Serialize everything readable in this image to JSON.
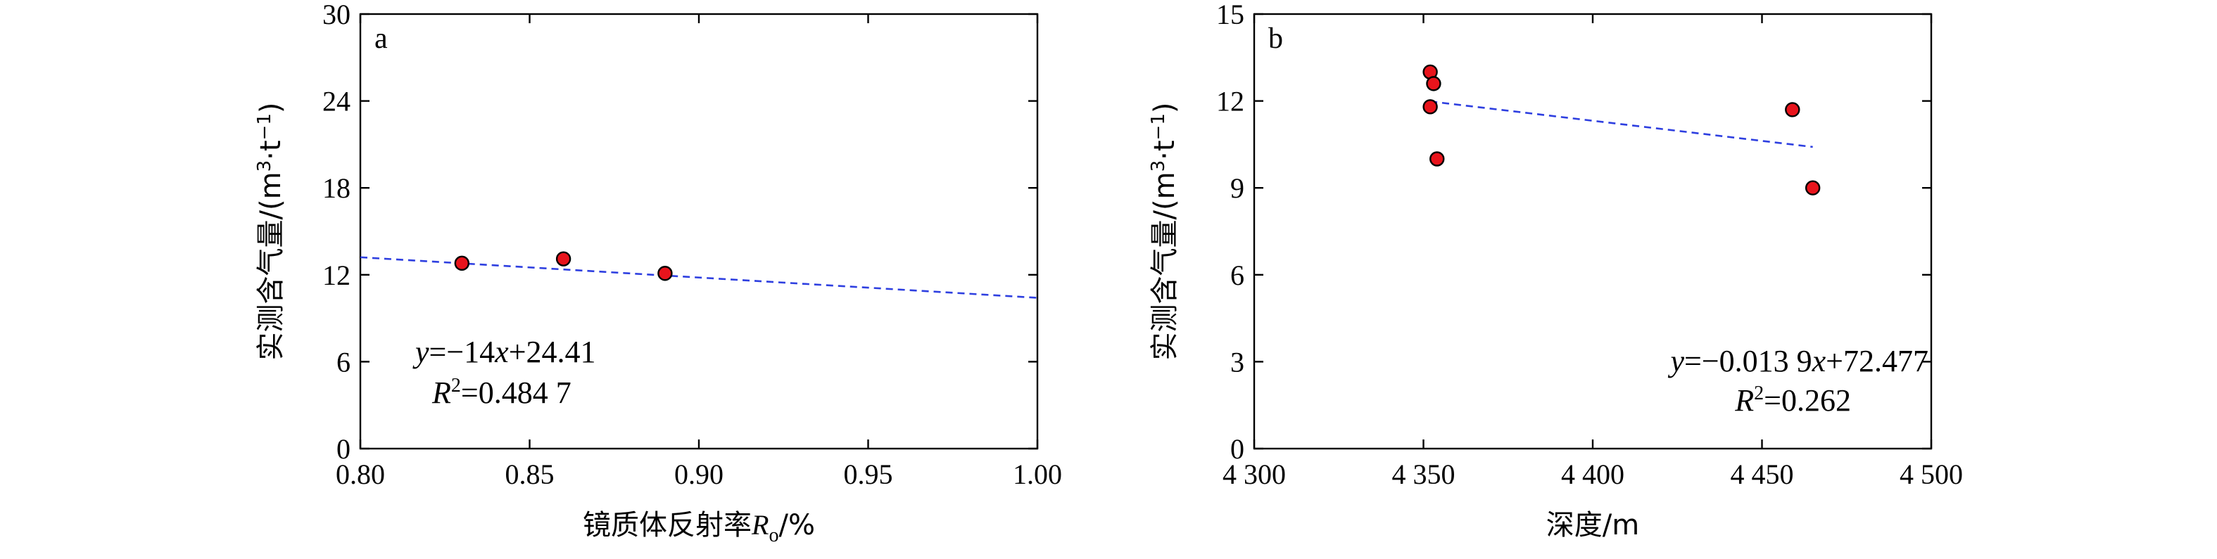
{
  "chart_data": [
    {
      "type": "scatter",
      "panel_label": "a",
      "xlabel_prefix": "镜质体反射率",
      "xlabel_var": "R",
      "xlabel_sub": "o",
      "xlabel_suffix": "/%",
      "ylabel_prefix": "实测含气量/(m",
      "ylabel_sup1": "3",
      "ylabel_mid": "·t",
      "ylabel_sup2": "−1",
      "ylabel_suffix": ")",
      "xlim": [
        0.8,
        1.0
      ],
      "ylim": [
        0,
        30
      ],
      "xticks": [
        0.8,
        0.85,
        0.9,
        0.95,
        1.0
      ],
      "xtick_labels": [
        "0.80",
        "0.85",
        "0.90",
        "0.95",
        "1.00"
      ],
      "yticks": [
        0,
        6,
        12,
        18,
        24,
        30
      ],
      "ytick_labels": [
        "0",
        "6",
        "12",
        "18",
        "24",
        "30"
      ],
      "points": [
        {
          "x": 0.83,
          "y": 12.8
        },
        {
          "x": 0.86,
          "y": 13.1
        },
        {
          "x": 0.89,
          "y": 12.1
        }
      ],
      "fit": {
        "slope": -14,
        "intercept": 24.41,
        "x_range": [
          0.8,
          1.0
        ]
      },
      "equation_line1": "y=−14x+24.41",
      "equation_line2": "R²=0.484 7",
      "grid": false
    },
    {
      "type": "scatter",
      "panel_label": "b",
      "xlabel": "深度/m",
      "ylabel_prefix": "实测含气量/(m",
      "ylabel_sup1": "3",
      "ylabel_mid": "·t",
      "ylabel_sup2": "−1",
      "ylabel_suffix": ")",
      "xlim": [
        4300,
        4500
      ],
      "ylim": [
        0,
        15
      ],
      "xticks": [
        4300,
        4350,
        4400,
        4450,
        4500
      ],
      "xtick_labels": [
        "4 300",
        "4 350",
        "4 400",
        "4 450",
        "4 500"
      ],
      "yticks": [
        0,
        3,
        6,
        9,
        12,
        15
      ],
      "ytick_labels": [
        "0",
        "3",
        "6",
        "9",
        "12",
        "15"
      ],
      "points": [
        {
          "x": 4352,
          "y": 13.0
        },
        {
          "x": 4353,
          "y": 12.6
        },
        {
          "x": 4352,
          "y": 11.8
        },
        {
          "x": 4354,
          "y": 10.0
        },
        {
          "x": 4459,
          "y": 11.7
        },
        {
          "x": 4465,
          "y": 9.0
        }
      ],
      "fit": {
        "slope": -0.0139,
        "intercept": 72.477,
        "x_range": [
          4352,
          4465
        ]
      },
      "equation_line1": "y=−0.013 9x+72.477",
      "equation_line2": "R²=0.262",
      "grid": false
    }
  ]
}
